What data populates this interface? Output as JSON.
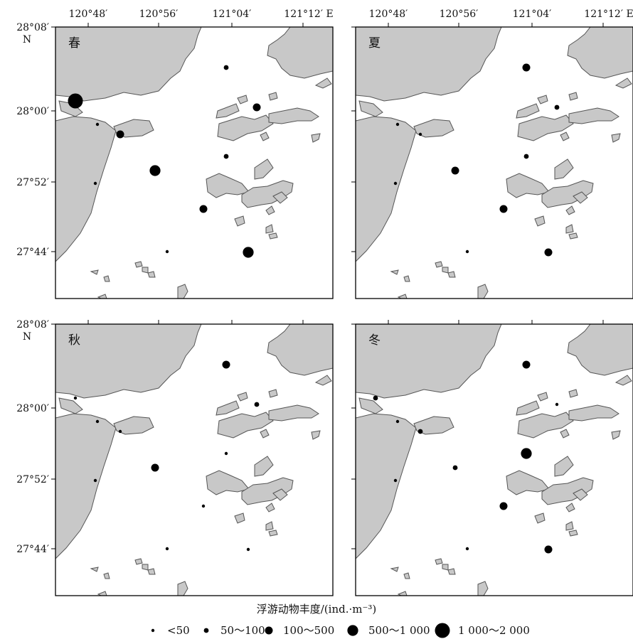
{
  "lon_labels": [
    "120°48′",
    "120°56′",
    "121°04′",
    "121°12′"
  ],
  "lon_suffix": "E",
  "lat_labels": [
    "28°08′",
    "28°00′",
    "27°52′",
    "27°44′"
  ],
  "lat_suffix": "N",
  "colors": {
    "land": "#c8c8c8",
    "land_stroke": "#555555",
    "dot": "#000000",
    "frame": "#000000"
  },
  "legend": {
    "title": "浮游动物丰度/(ind.·m⁻³)",
    "classes": [
      "<50",
      "50～100",
      "100～500",
      "500～1 000",
      "1 000～2 000"
    ]
  },
  "panels": [
    {
      "season": "春",
      "classes": [
        4,
        0,
        2,
        1,
        2,
        3,
        1,
        2,
        0,
        3,
        0
      ]
    },
    {
      "season": "夏",
      "classes": [
        null,
        0,
        0,
        2,
        1,
        2,
        1,
        2,
        0,
        2,
        0
      ]
    },
    {
      "season": "秋",
      "classes": [
        0,
        0,
        0,
        2,
        1,
        2,
        0,
        0,
        0,
        0,
        0
      ]
    },
    {
      "season": "冬",
      "classes": [
        1,
        0,
        1,
        2,
        0,
        1,
        3,
        2,
        0,
        2,
        0
      ]
    }
  ]
}
